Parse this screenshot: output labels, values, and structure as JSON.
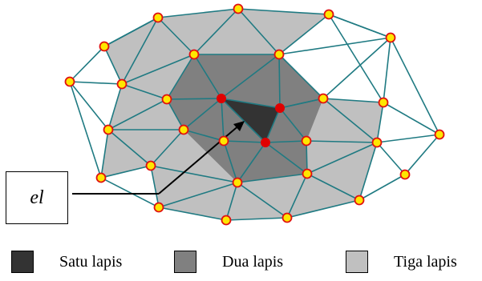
{
  "element_label": "el",
  "legend": [
    {
      "label": "Satu lapis",
      "color": "#333333"
    },
    {
      "label": "Dua lapis",
      "color": "#808080"
    },
    {
      "label": "Tiga lapis",
      "color": "#c0c0c0"
    }
  ],
  "colors": {
    "edge": "#1f7a82",
    "node_fill": "#ffe600",
    "node_stroke": "#e01010",
    "center_node": "#e00000",
    "arrow": "#000000"
  }
}
